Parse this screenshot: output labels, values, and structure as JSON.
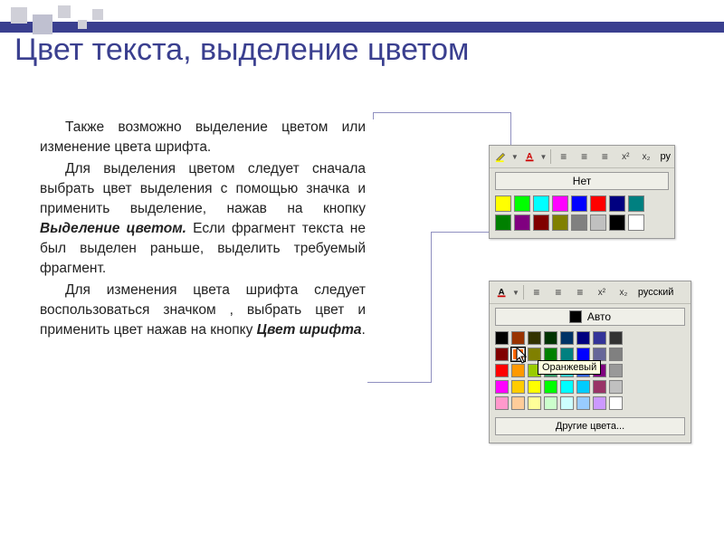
{
  "title": "Цвет текста, выделение цветом",
  "para1": "Также возможно выделение цветом или изменение цвета шрифта.",
  "para2_a": "Для выделения цветом следует сначала выбрать цвет выделения с помощью значка и применить выделение, нажав на кнопку ",
  "para2_b": "Выделение цветом.",
  "para2_c": " Если фрагмент текста не был выделен раньше, выделить требуемый фрагмент.",
  "para3_a": "Для изменения цвета шрифта следует воспользоваться значком , выбрать цвет и применить цвет нажав на кнопку ",
  "para3_b": "Цвет шрифта",
  "para3_c": ".",
  "highlight_panel": {
    "lang_hint": "ру",
    "header_btn": "Нет",
    "colors": [
      "#ffff00",
      "#00ff00",
      "#00ffff",
      "#ff00ff",
      "#0000ff",
      "#ff0000",
      "#000080",
      "#008080",
      "#008000",
      "#800080",
      "#800000",
      "#808000",
      "#808080",
      "#c0c0c0",
      "#000000",
      "#ffffff"
    ]
  },
  "fontcolor_panel": {
    "lang_hint": "русский",
    "header_btn": "Авто",
    "current_swatch": "#000000",
    "tooltip": "Оранжевый",
    "more": "Другие цвета...",
    "colors": [
      "#000000",
      "#993300",
      "#333300",
      "#003300",
      "#003366",
      "#000080",
      "#333399",
      "#333333",
      "#800000",
      "#ff6600",
      "#808000",
      "#008000",
      "#008080",
      "#0000ff",
      "#666699",
      "#808080",
      "#ff0000",
      "#ff9900",
      "#99cc00",
      "#339966",
      "#33cccc",
      "#3366ff",
      "#800080",
      "#999999",
      "#ff00ff",
      "#ffcc00",
      "#ffff00",
      "#00ff00",
      "#00ffff",
      "#00ccff",
      "#993366",
      "#c0c0c0",
      "#ff99cc",
      "#ffcc99",
      "#ffff99",
      "#ccffcc",
      "#ccffff",
      "#99ccff",
      "#cc99ff",
      "#ffffff"
    ]
  },
  "toolbar_labels": {
    "x2_sup": "x²",
    "x2_sub": "x₂"
  }
}
